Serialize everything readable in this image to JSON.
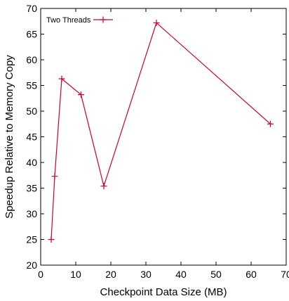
{
  "chart_data": {
    "type": "line",
    "title": "",
    "xlabel": "Checkpoint Data Size (MB)",
    "ylabel": "Speedup Relative to Memory Copy",
    "xlim": [
      0,
      70
    ],
    "ylim": [
      20,
      70
    ],
    "xticks": [
      0,
      10,
      20,
      30,
      40,
      50,
      60,
      70
    ],
    "yticks": [
      20,
      25,
      30,
      35,
      40,
      45,
      50,
      55,
      60,
      65,
      70
    ],
    "grid": false,
    "legend_position": "top-left",
    "series": [
      {
        "name": "Two Threads",
        "color": "#cc0033",
        "marker": "plus",
        "x": [
          3,
          4,
          6,
          11.5,
          18,
          33,
          65.5
        ],
        "y": [
          25,
          37.3,
          56.3,
          53.2,
          35.4,
          67.2,
          47.5
        ]
      }
    ]
  }
}
